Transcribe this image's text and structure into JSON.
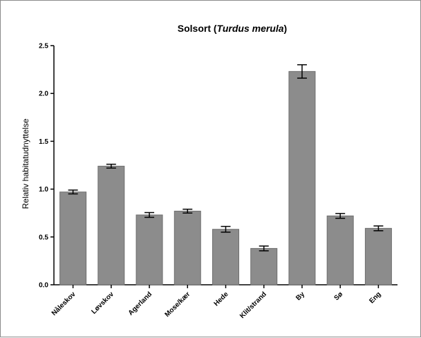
{
  "chart_data": {
    "type": "bar",
    "title_prefix": "Solsort (",
    "title_italic": "Turdus merula",
    "title_suffix": ")",
    "xlabel": "",
    "ylabel": "Relativ habitatudnyttelse",
    "ylim": [
      0,
      2.5
    ],
    "yticks": [
      "0.0",
      "0.5",
      "1.0",
      "1.5",
      "2.0",
      "2.5"
    ],
    "categories": [
      "Nåleskov",
      "Løvskov",
      "Agerland",
      "Mose/kær",
      "Hede",
      "Klit/strand",
      "By",
      "Sø",
      "Eng"
    ],
    "values": [
      0.97,
      1.24,
      0.73,
      0.77,
      0.58,
      0.38,
      2.23,
      0.72,
      0.59
    ],
    "errors": [
      0.02,
      0.02,
      0.025,
      0.02,
      0.03,
      0.025,
      0.07,
      0.025,
      0.025
    ],
    "grid": false,
    "colors": {
      "bar": "#8c8c8c",
      "bar_edge": "#6e6e6e",
      "axis": "#000000"
    }
  }
}
